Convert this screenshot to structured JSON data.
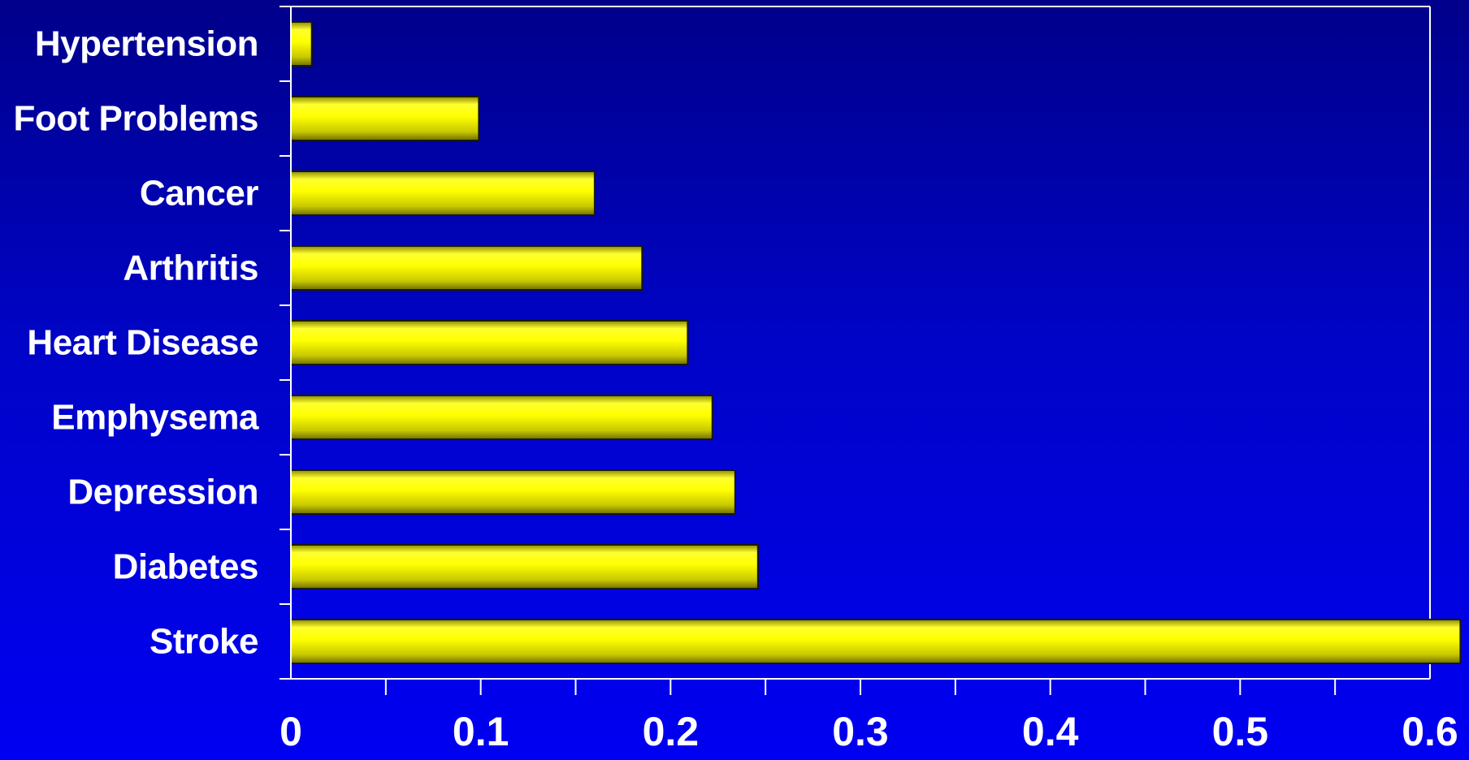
{
  "chart_data": {
    "type": "bar",
    "orientation": "horizontal",
    "categories": [
      "Hypertension",
      "Foot Problems",
      "Cancer",
      "Arthritis",
      "Heart Disease",
      "Emphysema",
      "Depression",
      "Diabetes",
      "Stroke"
    ],
    "values": [
      0.011,
      0.099,
      0.16,
      0.185,
      0.209,
      0.222,
      0.234,
      0.246,
      0.616
    ],
    "title": "",
    "xlabel": "",
    "ylabel": "",
    "xlim": [
      0,
      0.6
    ],
    "xticks": [
      "0",
      "0.1",
      "0.2",
      "0.3",
      "0.4",
      "0.5",
      "0.6"
    ],
    "grid": false,
    "legend": "none",
    "colors": {
      "bar": "#ffff00",
      "bar_outline": "#1a1a00",
      "axis": "#ffffff",
      "text": "#ffffff",
      "background_top": "#00008a",
      "background_bottom": "#0000f2"
    }
  }
}
